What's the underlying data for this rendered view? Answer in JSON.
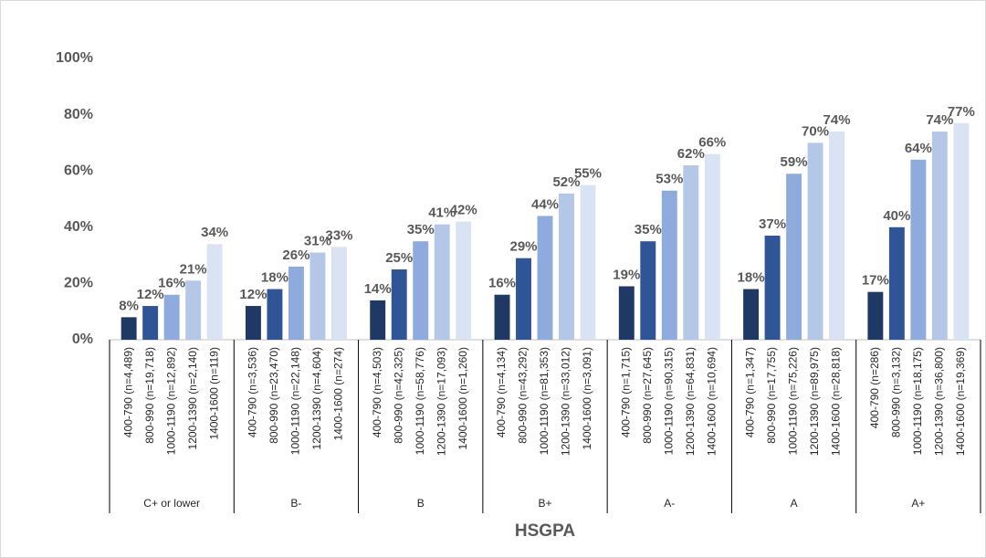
{
  "chart_data": {
    "type": "bar",
    "x_label": "HSGPA",
    "colors": [
      "#203864",
      "#2f5597",
      "#8faadc",
      "#b4c7e7",
      "#dae3f3"
    ],
    "ylim": [
      0,
      100
    ],
    "yticks": [
      {
        "value": 0,
        "label": "0%"
      },
      {
        "value": 20,
        "label": "20%"
      },
      {
        "value": 40,
        "label": "40%"
      },
      {
        "value": 60,
        "label": "60%"
      },
      {
        "value": 80,
        "label": "80%"
      },
      {
        "value": 100,
        "label": "100%"
      }
    ],
    "groups": [
      {
        "name": "C+ or lower",
        "categories": [
          "400-790 (n=4,489)",
          "800-990 (n=19,718)",
          "1000-1190 (n=12,892)",
          "1200-1390 (n=2,140)",
          "1400-1600 (n=119)"
        ],
        "values": [
          8,
          12,
          16,
          21,
          34
        ],
        "value_labels": [
          "8%",
          "12%",
          "16%",
          "21%",
          "34%"
        ]
      },
      {
        "name": "B-",
        "categories": [
          "400-790 (n=3,536)",
          "800-990 (n=23,470)",
          "1000-1190 (n=22,148)",
          "1200-1390 (n=4,604)",
          "1400-1600 (n=274)"
        ],
        "values": [
          12,
          18,
          26,
          31,
          33
        ],
        "value_labels": [
          "12%",
          "18%",
          "26%",
          "31%",
          "33%"
        ]
      },
      {
        "name": "B",
        "categories": [
          "400-790 (n=4,503)",
          "800-990 (n=42,325)",
          "1000-1190 (n=58,776)",
          "1200-1390 (n=17,093)",
          "1400-1600 (n=1,260)"
        ],
        "values": [
          14,
          25,
          35,
          41,
          42
        ],
        "value_labels": [
          "14%",
          "25%",
          "35%",
          "41%",
          "42%"
        ]
      },
      {
        "name": "B+",
        "categories": [
          "400-790 (n=4,134)",
          "800-990 (n=43,292)",
          "1000-1190 (n=81,353)",
          "1200-1390 (n=33,012)",
          "1400-1600 (n=3,091)"
        ],
        "values": [
          16,
          29,
          44,
          52,
          55
        ],
        "value_labels": [
          "16%",
          "29%",
          "44%",
          "52%",
          "55%"
        ]
      },
      {
        "name": "A-",
        "categories": [
          "400-790 (n=1,715)",
          "800-990 (n=27,645)",
          "1000-1190 (n=90,315)",
          "1200-1390 (n=64,831)",
          "1400-1600 (n=10,694)"
        ],
        "values": [
          19,
          35,
          53,
          62,
          66
        ],
        "value_labels": [
          "19%",
          "35%",
          "53%",
          "62%",
          "66%"
        ]
      },
      {
        "name": "A",
        "categories": [
          "400-790 (n=1,347)",
          "800-990 (n=17,755)",
          "1000-1190 (n=75,226)",
          "1200-1390 (n=89,975)",
          "1400-1600 (n=28,818)"
        ],
        "values": [
          18,
          37,
          59,
          70,
          74
        ],
        "value_labels": [
          "18%",
          "37%",
          "59%",
          "70%",
          "74%"
        ]
      },
      {
        "name": "A+",
        "categories": [
          "400-790 (n=286)",
          "800-990 (n=3,132)",
          "1000-1190 (n=18,175)",
          "1200-1390 (n=36,800)",
          "1400-1600 (n=19,369)"
        ],
        "values": [
          17,
          40,
          64,
          74,
          77
        ],
        "value_labels": [
          "17%",
          "40%",
          "64%",
          "74%",
          "77%"
        ]
      }
    ]
  }
}
